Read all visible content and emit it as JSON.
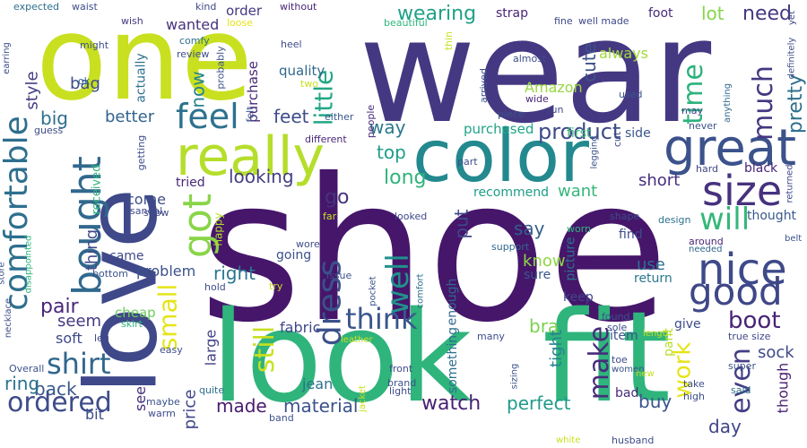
{
  "words": [
    {
      "text": "shoe",
      "color": "#46166b"
    },
    {
      "text": "wear",
      "color": "#453882"
    },
    {
      "text": "one",
      "color": "#c8e020"
    },
    {
      "text": "look",
      "color": "#2fb47c"
    },
    {
      "text": "fit",
      "color": "#2fb47c"
    },
    {
      "text": "love",
      "color": "#3f4889"
    },
    {
      "text": "color",
      "color": "#23898e"
    },
    {
      "text": "really",
      "color": "#b5de2b"
    },
    {
      "text": "comfortable",
      "color": "#2e6f8e"
    },
    {
      "text": "great",
      "color": "#3b528b"
    },
    {
      "text": "bought",
      "color": "#31688e"
    },
    {
      "text": "got",
      "color": "#89d548"
    },
    {
      "text": "nice",
      "color": "#3e4a89"
    },
    {
      "text": "size",
      "color": "#46327e"
    },
    {
      "text": "good",
      "color": "#3f4788"
    },
    {
      "text": "feel",
      "color": "#2c728e"
    },
    {
      "text": "dress",
      "color": "#3b518b"
    },
    {
      "text": "small",
      "color": "#e5e419"
    },
    {
      "text": "will",
      "color": "#35b779"
    },
    {
      "text": "think",
      "color": "#39568c"
    },
    {
      "text": "well",
      "color": "#21918c"
    },
    {
      "text": "shirt",
      "color": "#31678e"
    },
    {
      "text": "little",
      "color": "#22a785"
    },
    {
      "text": "time",
      "color": "#2db27d"
    },
    {
      "text": "much",
      "color": "#453781"
    },
    {
      "text": "make",
      "color": "#472d7b"
    },
    {
      "text": "even",
      "color": "#433e85"
    },
    {
      "text": "work",
      "color": "#e5e419"
    },
    {
      "text": "boot",
      "color": "#482475"
    },
    {
      "text": "ordered",
      "color": "#3e4c8a"
    },
    {
      "text": "still",
      "color": "#c8e020"
    },
    {
      "text": "product",
      "color": "#3e4a89"
    },
    {
      "text": "wearing",
      "color": "#1fa187"
    },
    {
      "text": "need",
      "color": "#453882"
    },
    {
      "text": "pretty",
      "color": "#2d708e"
    },
    {
      "text": "cute",
      "color": "#3b528b"
    },
    {
      "text": "lot",
      "color": "#86d549"
    },
    {
      "text": "Amazon",
      "color": "#98d83e"
    },
    {
      "text": "always",
      "color": "#a0da39"
    },
    {
      "text": "now",
      "color": "#26828e"
    },
    {
      "text": "feet",
      "color": "#3e4c8a"
    },
    {
      "text": "way",
      "color": "#2a788e"
    },
    {
      "text": "top",
      "color": "#1e9d89"
    },
    {
      "text": "long",
      "color": "#2fb47c"
    },
    {
      "text": "looking",
      "color": "#433e85"
    },
    {
      "text": "go",
      "color": "#46337f"
    },
    {
      "text": "short",
      "color": "#46307e"
    },
    {
      "text": "want",
      "color": "#34b679"
    },
    {
      "text": "put",
      "color": "#3f4788"
    },
    {
      "text": "say",
      "color": "#355e8d"
    },
    {
      "text": "know",
      "color": "#90d743"
    },
    {
      "text": "bra",
      "color": "#7ad151"
    },
    {
      "text": "right",
      "color": "#2a768e"
    },
    {
      "text": "pair",
      "color": "#482677"
    },
    {
      "text": "back",
      "color": "#38588c"
    },
    {
      "text": "ring",
      "color": "#2c728e"
    },
    {
      "text": "big",
      "color": "#2e6e8e"
    },
    {
      "text": "bag",
      "color": "#3d4d8a"
    },
    {
      "text": "style",
      "color": "#433d84"
    },
    {
      "text": "better",
      "color": "#33638d"
    },
    {
      "text": "come",
      "color": "#3d4e8a"
    },
    {
      "text": "thing",
      "color": "#3f4889"
    },
    {
      "text": "seem",
      "color": "#453882"
    },
    {
      "text": "made",
      "color": "#481b6d"
    },
    {
      "text": "material",
      "color": "#3b528b"
    },
    {
      "text": "watch",
      "color": "#482173"
    },
    {
      "text": "perfect",
      "color": "#1f9a8a"
    },
    {
      "text": "buy",
      "color": "#3a548c"
    },
    {
      "text": "day",
      "color": "#404588"
    },
    {
      "text": "tight",
      "color": "#26828e"
    },
    {
      "text": "use",
      "color": "#2c718e"
    },
    {
      "text": "sock",
      "color": "#3e4989"
    },
    {
      "text": "though",
      "color": "#481f70"
    },
    {
      "text": "price",
      "color": "#404688"
    },
    {
      "text": "large",
      "color": "#414487"
    },
    {
      "text": "problem",
      "color": "#3b518b"
    },
    {
      "text": "fabric",
      "color": "#3f4889"
    },
    {
      "text": "jean",
      "color": "#2c718e"
    },
    {
      "text": "soft",
      "color": "#3e4a89"
    },
    {
      "text": "cheap",
      "color": "#6ccd5a"
    },
    {
      "text": "bit",
      "color": "#3e4c8a"
    },
    {
      "text": "see",
      "color": "#472c7a"
    },
    {
      "text": "quality",
      "color": "#31688e"
    },
    {
      "text": "purchase",
      "color": "#482878"
    },
    {
      "text": "actually",
      "color": "#2c718e"
    },
    {
      "text": "purchased",
      "color": "#20a486"
    },
    {
      "text": "recommend",
      "color": "#1e9d89"
    },
    {
      "text": "first",
      "color": "#37b878"
    },
    {
      "text": "side",
      "color": "#39568c"
    },
    {
      "text": "black",
      "color": "#482475"
    },
    {
      "text": "order",
      "color": "#453781"
    },
    {
      "text": "strap",
      "color": "#482576"
    },
    {
      "text": "foot",
      "color": "#472a7a"
    },
    {
      "text": "wanted",
      "color": "#46327e"
    },
    {
      "text": "tried",
      "color": "#482777"
    },
    {
      "text": "happy",
      "color": "#b5de2b"
    },
    {
      "text": "came",
      "color": "#3e4989"
    },
    {
      "text": "going",
      "color": "#3b528b"
    },
    {
      "text": "thought",
      "color": "#38598c"
    },
    {
      "text": "find",
      "color": "#3d4d8a"
    },
    {
      "text": "return",
      "color": "#2a778e"
    },
    {
      "text": "keep",
      "color": "#3f4889"
    },
    {
      "text": "sure",
      "color": "#39568c"
    },
    {
      "text": "enough",
      "color": "#31688e"
    },
    {
      "text": "item",
      "color": "#3b528b"
    },
    {
      "text": "give",
      "color": "#3e4a89"
    },
    {
      "text": "pant",
      "color": "#b8de29"
    },
    {
      "text": "picture",
      "color": "#2c728e"
    },
    {
      "text": "something",
      "color": "#2d708e"
    },
    {
      "text": "bad",
      "color": "#472c7a"
    },
    {
      "text": "received",
      "color": "#2fb47c"
    },
    {
      "text": "bottom",
      "color": "#3b518b"
    },
    {
      "text": "waist",
      "color": "#3e4c8a"
    },
    {
      "text": "wish",
      "color": "#453781"
    },
    {
      "text": "kind",
      "color": "#3f4788"
    },
    {
      "text": "without",
      "color": "#482677"
    },
    {
      "text": "expected",
      "color": "#2e6e8e"
    },
    {
      "text": "earring",
      "color": "#3e4c8a"
    },
    {
      "text": "might",
      "color": "#3d4e8a"
    },
    {
      "text": "ok",
      "color": "#31688e"
    },
    {
      "text": "comfy",
      "color": "#2d708e"
    },
    {
      "text": "review",
      "color": "#3d4e8a"
    },
    {
      "text": "probably",
      "color": "#3b528b"
    },
    {
      "text": "two",
      "color": "#c8e020"
    },
    {
      "text": "heel",
      "color": "#3e4c8a"
    },
    {
      "text": "felt",
      "color": "#3b528b"
    },
    {
      "text": "loose",
      "color": "#e5e419"
    },
    {
      "text": "either",
      "color": "#39568c"
    },
    {
      "text": "people",
      "color": "#472a7a"
    },
    {
      "text": "beautiful",
      "color": "#2fb47c"
    },
    {
      "text": "thin",
      "color": "#c8e020"
    },
    {
      "text": "arrived",
      "color": "#3b528b"
    },
    {
      "text": "almost",
      "color": "#3e4c8a"
    },
    {
      "text": "fine",
      "color": "#3f4889"
    },
    {
      "text": "well made",
      "color": "#3f4889"
    },
    {
      "text": "wide",
      "color": "#482677"
    },
    {
      "text": "run",
      "color": "#3e4989"
    },
    {
      "text": "used",
      "color": "#39568c"
    },
    {
      "text": "yet",
      "color": "#404588"
    },
    {
      "text": "definitely",
      "color": "#3d4e8a"
    },
    {
      "text": "returned",
      "color": "#3f4889"
    },
    {
      "text": "anything",
      "color": "#31688e"
    },
    {
      "text": "may",
      "color": "#3f4788"
    },
    {
      "text": "never",
      "color": "#3b528b"
    },
    {
      "text": "guess",
      "color": "#3e4c8a"
    },
    {
      "text": "getting",
      "color": "#3d4e8a"
    },
    {
      "text": "different",
      "color": "#482677"
    },
    {
      "text": "piece",
      "color": "#3b528b"
    },
    {
      "text": "part",
      "color": "#3e4c8a"
    },
    {
      "text": "cut",
      "color": "#3f4788"
    },
    {
      "text": "legging",
      "color": "#3b528b"
    },
    {
      "text": "shape",
      "color": "#3e4c8a"
    },
    {
      "text": "design",
      "color": "#2d708e"
    },
    {
      "text": "hard",
      "color": "#3f4788"
    },
    {
      "text": "belt",
      "color": "#3b528b"
    },
    {
      "text": "around",
      "color": "#482677"
    },
    {
      "text": "needed",
      "color": "#31688e"
    },
    {
      "text": "sandal",
      "color": "#3e4c8a"
    },
    {
      "text": "show",
      "color": "#3f4889"
    },
    {
      "text": "store",
      "color": "#3b528b"
    },
    {
      "text": "disappointed",
      "color": "#2fb47c"
    },
    {
      "text": "far",
      "color": "#c8e020"
    },
    {
      "text": "wore",
      "color": "#3e4c8a"
    },
    {
      "text": "looked",
      "color": "#3f4788"
    },
    {
      "text": "issue",
      "color": "#3b528b"
    },
    {
      "text": "support",
      "color": "#31688e"
    },
    {
      "text": "worn",
      "color": "#2fb47c"
    },
    {
      "text": "comfort",
      "color": "#2d708e"
    },
    {
      "text": "hold",
      "color": "#3e4c8a"
    },
    {
      "text": "try",
      "color": "#c8e020"
    },
    {
      "text": "pocket",
      "color": "#3b528b"
    },
    {
      "text": "necklace",
      "color": "#3e4c8a"
    },
    {
      "text": "leg",
      "color": "#3f4889"
    },
    {
      "text": "skirt",
      "color": "#2fb47c"
    },
    {
      "text": "easy",
      "color": "#3d4e8a"
    },
    {
      "text": "leather",
      "color": "#c8e020"
    },
    {
      "text": "many",
      "color": "#3e4c8a"
    },
    {
      "text": "found",
      "color": "#3b528b"
    },
    {
      "text": "sole",
      "color": "#3e4c8a"
    },
    {
      "text": "length",
      "color": "#c8e020"
    },
    {
      "text": "true size",
      "color": "#3f4889"
    },
    {
      "text": "super",
      "color": "#3b528b"
    },
    {
      "text": "take",
      "color": "#3e4c8a"
    },
    {
      "text": "high",
      "color": "#3d4e8a"
    },
    {
      "text": "said",
      "color": "#2d708e"
    },
    {
      "text": "toe",
      "color": "#3e4c8a"
    },
    {
      "text": "women",
      "color": "#3b528b"
    },
    {
      "text": "new",
      "color": "#c8e020"
    },
    {
      "text": "front",
      "color": "#3e4c8a"
    },
    {
      "text": "brand",
      "color": "#3b528b"
    },
    {
      "text": "light",
      "color": "#3f4889"
    },
    {
      "text": "sizing",
      "color": "#3b528b"
    },
    {
      "text": "jacket",
      "color": "#c8e020"
    },
    {
      "text": "maybe",
      "color": "#3b528b"
    },
    {
      "text": "warm",
      "color": "#3e4c8a"
    },
    {
      "text": "quite",
      "color": "#2d708e"
    },
    {
      "text": "band",
      "color": "#3b528b"
    },
    {
      "text": "white",
      "color": "#c8e020"
    },
    {
      "text": "husband",
      "color": "#3e4c8a"
    },
    {
      "text": "Overall",
      "color": "#3b528b"
    }
  ]
}
